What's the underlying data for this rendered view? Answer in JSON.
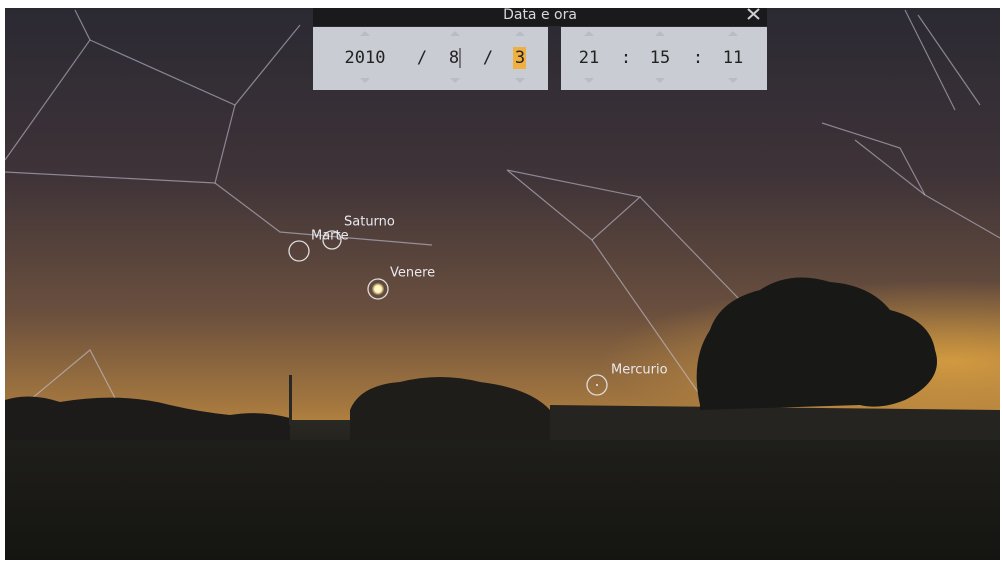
{
  "dialog": {
    "title": "Data e ora",
    "date": {
      "year": "2010",
      "month": "8",
      "day": "3",
      "separators": [
        "/",
        "/"
      ]
    },
    "time": {
      "hour": "21",
      "minute": "15",
      "second": "11",
      "separators": [
        ":",
        ":"
      ]
    }
  },
  "planets": [
    {
      "label": "Saturno"
    },
    {
      "label": "Marte"
    },
    {
      "label": "Venere"
    },
    {
      "label": "Mercurio"
    }
  ]
}
